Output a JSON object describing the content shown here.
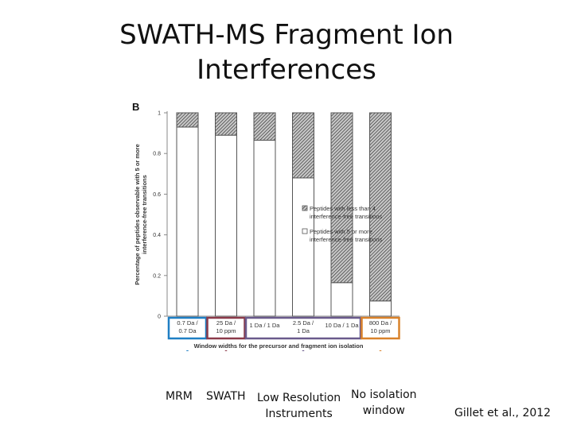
{
  "slide": {
    "title_line1": "SWATH-MS Fragment Ion",
    "title_line2": "Interferences",
    "citation": "Gillet et al., 2012"
  },
  "annotations": {
    "mrm": "MRM",
    "swath": "SWATH",
    "low_res_line1": "Low Resolution",
    "low_res_line2": "Instruments",
    "no_iso_line1": "No isolation",
    "no_iso_line2": "window"
  },
  "colors": {
    "mrm": "#1f7fc4",
    "swath": "#8b3a4a",
    "low_res": "#6a5a8c",
    "no_iso": "#d9822b"
  },
  "chart_data": {
    "type": "bar",
    "stacked": true,
    "panel_label": "B",
    "categories": [
      [
        "0.7 Da /",
        "0.7 Da"
      ],
      [
        "25 Da /",
        "10 ppm"
      ],
      [
        "1 Da / 1 Da"
      ],
      [
        "2.5 Da /",
        "1 Da"
      ],
      [
        "10 Da / 1 Da"
      ],
      [
        "800 Da /",
        "10 ppm"
      ]
    ],
    "series": [
      {
        "name": "Peptides with 5 or more interference-free transitions",
        "pattern": "white",
        "values": [
          0.93,
          0.89,
          0.865,
          0.68,
          0.165,
          0.075
        ]
      },
      {
        "name": "Peptides with less than 4 interference-free transitions",
        "pattern": "hatched",
        "values": [
          0.07,
          0.11,
          0.135,
          0.32,
          0.835,
          0.925
        ]
      }
    ],
    "legend": [
      [
        "Peptides with less than 4",
        "interference-free transitions"
      ],
      [
        "Peptides with 5 or more",
        "interference-free transitions"
      ]
    ],
    "legend_position": "right",
    "ylabel_lines": [
      "Percentage of peptides observable with 5 or more",
      "interference-free transitions"
    ],
    "xlabel": "Window widths for the precursor and fragment ion isolation",
    "ylim": [
      0,
      1
    ],
    "yticks": [
      "0",
      "0.2",
      "0.4",
      "0.6",
      "0.8",
      "1"
    ],
    "grid": false,
    "highlight_groups": [
      {
        "categories": [
          0
        ],
        "color": "#1f7fc4"
      },
      {
        "categories": [
          1
        ],
        "color": "#8b3a4a"
      },
      {
        "categories": [
          2,
          3,
          4
        ],
        "color": "#6a5a8c"
      },
      {
        "categories": [
          5
        ],
        "color": "#d9822b"
      }
    ]
  }
}
